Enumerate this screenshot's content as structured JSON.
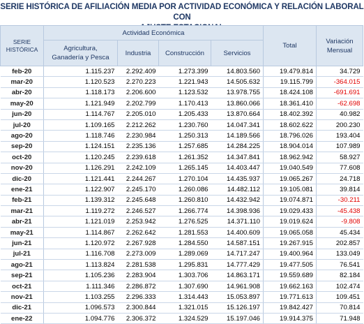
{
  "title_line1": "SERIE HISTÓRICA DE AFILIACIÓN MEDIA POR ACTIVIDAD ECONÓMICA Y RELACIÓN LABORAL CON",
  "title_line2": "AJUSTE ESTACIONAL",
  "headers": {
    "group": "Actividad Económica",
    "serie": "SERIE\nHISTÓRICA",
    "agri": "Agricultura,\nGanadería y Pesca",
    "industria": "Industria",
    "construccion": "Construcción",
    "servicios": "Servicios",
    "total": "Total",
    "variacion": "Variación\nMensual"
  },
  "rows": [
    {
      "date": "feb-20",
      "agri": "1.115.237",
      "ind": "2.292.409",
      "con": "1.273.399",
      "ser": "14.803.560",
      "tot": "19.479.814",
      "var": "34.729"
    },
    {
      "date": "mar-20",
      "agri": "1.120.523",
      "ind": "2.270.223",
      "con": "1.221.943",
      "ser": "14.505.632",
      "tot": "19.115.799",
      "var": "-364.015"
    },
    {
      "date": "abr-20",
      "agri": "1.118.173",
      "ind": "2.206.600",
      "con": "1.123.532",
      "ser": "13.978.755",
      "tot": "18.424.108",
      "var": "-691.691"
    },
    {
      "date": "may-20",
      "agri": "1.121.949",
      "ind": "2.202.799",
      "con": "1.170.413",
      "ser": "13.860.066",
      "tot": "18.361.410",
      "var": "-62.698"
    },
    {
      "date": "jun-20",
      "agri": "1.114.767",
      "ind": "2.205.010",
      "con": "1.205.433",
      "ser": "13.870.664",
      "tot": "18.402.392",
      "var": "40.982"
    },
    {
      "date": "jul-20",
      "agri": "1.109.165",
      "ind": "2.212.262",
      "con": "1.230.760",
      "ser": "14.047.341",
      "tot": "18.602.622",
      "var": "200.230"
    },
    {
      "date": "ago-20",
      "agri": "1.118.746",
      "ind": "2.230.984",
      "con": "1.250.313",
      "ser": "14.189.566",
      "tot": "18.796.026",
      "var": "193.404"
    },
    {
      "date": "sep-20",
      "agri": "1.124.151",
      "ind": "2.235.136",
      "con": "1.257.685",
      "ser": "14.284.225",
      "tot": "18.904.014",
      "var": "107.989"
    },
    {
      "date": "oct-20",
      "agri": "1.120.245",
      "ind": "2.239.618",
      "con": "1.261.352",
      "ser": "14.347.841",
      "tot": "18.962.942",
      "var": "58.927"
    },
    {
      "date": "nov-20",
      "agri": "1.126.291",
      "ind": "2.242.109",
      "con": "1.265.145",
      "ser": "14.403.447",
      "tot": "19.040.549",
      "var": "77.608"
    },
    {
      "date": "dic-20",
      "agri": "1.121.441",
      "ind": "2.244.267",
      "con": "1.270.104",
      "ser": "14.435.937",
      "tot": "19.065.267",
      "var": "24.718"
    },
    {
      "date": "ene-21",
      "agri": "1.122.907",
      "ind": "2.245.170",
      "con": "1.260.086",
      "ser": "14.482.112",
      "tot": "19.105.081",
      "var": "39.814"
    },
    {
      "date": "feb-21",
      "agri": "1.139.312",
      "ind": "2.245.648",
      "con": "1.260.810",
      "ser": "14.432.942",
      "tot": "19.074.871",
      "var": "-30.211"
    },
    {
      "date": "mar-21",
      "agri": "1.119.272",
      "ind": "2.246.527",
      "con": "1.266.774",
      "ser": "14.398.936",
      "tot": "19.029.433",
      "var": "-45.438"
    },
    {
      "date": "abr-21",
      "agri": "1.121.019",
      "ind": "2.253.942",
      "con": "1.276.525",
      "ser": "14.371.110",
      "tot": "19.019.624",
      "var": "-9.808"
    },
    {
      "date": "may-21",
      "agri": "1.114.867",
      "ind": "2.262.642",
      "con": "1.281.553",
      "ser": "14.400.609",
      "tot": "19.065.058",
      "var": "45.434"
    },
    {
      "date": "jun-21",
      "agri": "1.120.972",
      "ind": "2.267.928",
      "con": "1.284.550",
      "ser": "14.587.151",
      "tot": "19.267.915",
      "var": "202.857"
    },
    {
      "date": "jul-21",
      "agri": "1.116.708",
      "ind": "2.273.009",
      "con": "1.289.069",
      "ser": "14.717.247",
      "tot": "19.400.964",
      "var": "133.049"
    },
    {
      "date": "ago-21",
      "agri": "1.113.824",
      "ind": "2.281.538",
      "con": "1.295.831",
      "ser": "14.777.429",
      "tot": "19.477.505",
      "var": "76.541"
    },
    {
      "date": "sep-21",
      "agri": "1.105.236",
      "ind": "2.283.904",
      "con": "1.303.706",
      "ser": "14.863.171",
      "tot": "19.559.689",
      "var": "82.184"
    },
    {
      "date": "oct-21",
      "agri": "1.111.346",
      "ind": "2.286.872",
      "con": "1.307.690",
      "ser": "14.961.908",
      "tot": "19.662.163",
      "var": "102.474"
    },
    {
      "date": "nov-21",
      "agri": "1.103.255",
      "ind": "2.296.333",
      "con": "1.314.443",
      "ser": "15.053.897",
      "tot": "19.771.613",
      "var": "109.451"
    },
    {
      "date": "dic-21",
      "agri": "1.096.573",
      "ind": "2.300.844",
      "con": "1.321.015",
      "ser": "15.126.197",
      "tot": "19.842.427",
      "var": "70.814"
    },
    {
      "date": "ene-22",
      "agri": "1.094.776",
      "ind": "2.306.372",
      "con": "1.324.529",
      "ser": "15.197.046",
      "tot": "19.914.375",
      "var": "71.948"
    }
  ],
  "colors": {
    "header_bg": "#dce6f1",
    "title": "#1f3864",
    "negative": "#e00000"
  }
}
